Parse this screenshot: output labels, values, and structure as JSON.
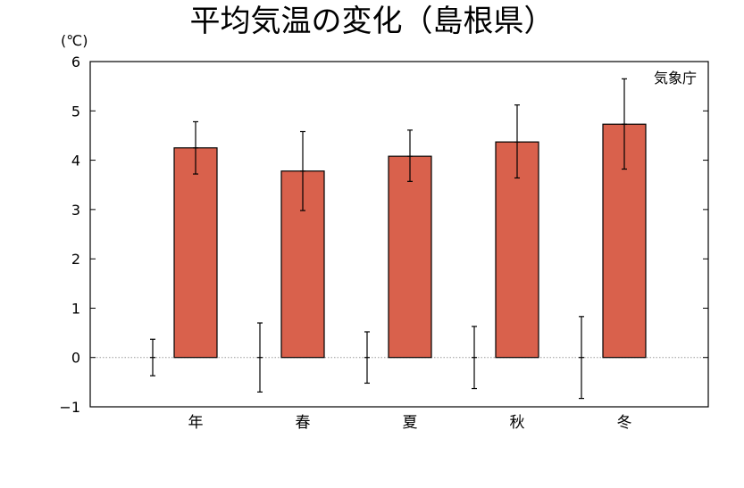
{
  "chart_data": {
    "type": "bar",
    "title": "平均気温の変化（島根県）",
    "unit_label": "(℃)",
    "source": "気象庁",
    "categories": [
      "年",
      "春",
      "夏",
      "秋",
      "冬"
    ],
    "ylim": [
      -1,
      6
    ],
    "yticks": [
      "6",
      "5",
      "4",
      "3",
      "2",
      "1",
      "0",
      "−1"
    ],
    "grid": false,
    "zero_line": "dotted",
    "series": [
      {
        "values": [
          4.25,
          3.78,
          4.08,
          4.37,
          4.73
        ],
        "error_low": [
          3.72,
          2.98,
          3.57,
          3.64,
          3.82
        ],
        "error_high": [
          4.78,
          4.58,
          4.61,
          5.12,
          5.65
        ]
      }
    ],
    "baseline_errors": {
      "center": [
        0,
        0,
        0,
        0,
        0
      ],
      "low": [
        -0.37,
        -0.7,
        -0.52,
        -0.63,
        -0.83
      ],
      "high": [
        0.37,
        0.7,
        0.52,
        0.63,
        0.83
      ]
    },
    "colors": {
      "bar": "#d9614c",
      "bar_edge": "#000000"
    }
  }
}
